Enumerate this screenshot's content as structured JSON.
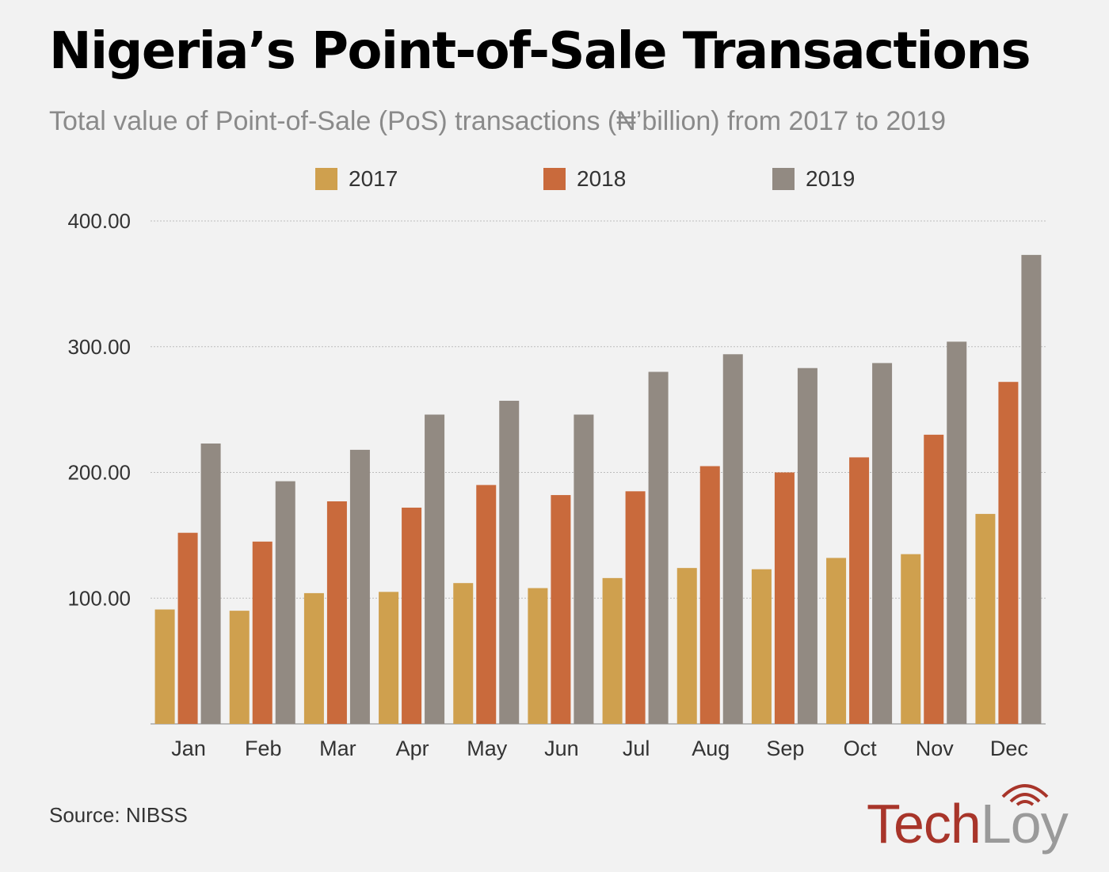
{
  "title": "Nigeria’s Point-of-Sale Transactions",
  "subtitle": "Total value of Point-of-Sale (PoS) transactions (₦’billion) from 2017 to 2019",
  "source": "Source: NIBSS",
  "logo": {
    "part1": "Tech",
    "part2": "Loy"
  },
  "colors": {
    "2017": "#cfa04e",
    "2018": "#c96a3c",
    "2019": "#928a82",
    "background": "#f2f2f2",
    "grid": "#bdbdbd"
  },
  "chart_data": {
    "type": "bar",
    "title": "Nigeria’s Point-of-Sale Transactions",
    "subtitle": "Total value of Point-of-Sale (PoS) transactions (₦’billion) from 2017 to 2019",
    "xlabel": "",
    "ylabel": "",
    "ylim": [
      0,
      400
    ],
    "yticks": [
      100,
      200,
      300,
      400
    ],
    "ytick_labels": [
      "100.00",
      "200.00",
      "300.00",
      "400.00"
    ],
    "grid": true,
    "legend_position": "top-center",
    "categories": [
      "Jan",
      "Feb",
      "Mar",
      "Apr",
      "May",
      "Jun",
      "Jul",
      "Aug",
      "Sep",
      "Oct",
      "Nov",
      "Dec"
    ],
    "series": [
      {
        "name": "2017",
        "values": [
          91,
          90,
          104,
          105,
          112,
          108,
          116,
          124,
          123,
          132,
          135,
          167
        ]
      },
      {
        "name": "2018",
        "values": [
          152,
          145,
          177,
          172,
          190,
          182,
          185,
          205,
          200,
          212,
          230,
          272
        ]
      },
      {
        "name": "2019",
        "values": [
          223,
          193,
          218,
          246,
          257,
          246,
          280,
          294,
          283,
          287,
          304,
          373
        ]
      }
    ]
  }
}
